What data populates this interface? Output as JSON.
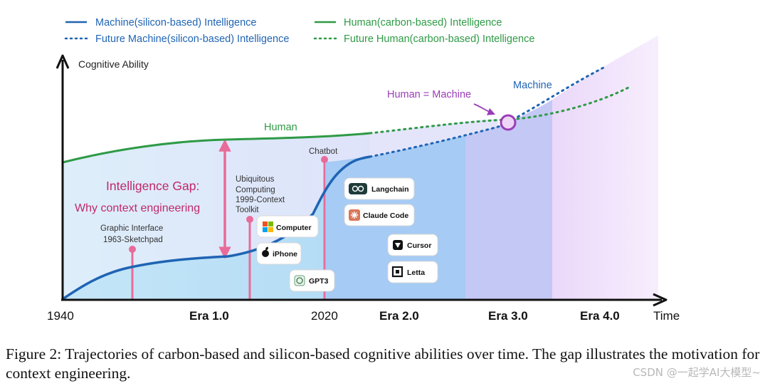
{
  "legend": {
    "machine": "Machine(silicon-based) Intelligence",
    "future_machine": "Future Machine(silicon-based) Intelligence",
    "human": "Human(carbon-based) Intelligence",
    "future_human": "Future Human(carbon-based) Intelligence"
  },
  "axes": {
    "y_label": "Cognitive Ability",
    "x_label": "Time",
    "ticks": {
      "t1940": "1940",
      "era1": "Era 1.0",
      "t2020": "2020",
      "era2": "Era 2.0",
      "era3": "Era 3.0",
      "era4": "Era 4.0"
    }
  },
  "labels": {
    "human": "Human",
    "machine": "Machine",
    "equal": "Human = Machine",
    "gap_title": "Intelligence Gap:",
    "gap_sub": "Why context engineering",
    "graphic1": "Graphic Interface",
    "graphic2": "1963-Sketchpad",
    "ubi1": "Ubiquitous",
    "ubi2": "Computing",
    "ubi3": "1999-Context",
    "ubi4": "Toolkit",
    "chatbot": "Chatbot"
  },
  "badges": {
    "computer": "Computer",
    "iphone": "iPhone",
    "gpt3": "GPT3",
    "langchain": "Langchain",
    "claude": "Claude Code",
    "cursor": "Cursor",
    "letta": "Letta"
  },
  "colors": {
    "machine": "#1f64b4",
    "human": "#2e9a46",
    "equal": "#9a3db8",
    "gap": "#c0286a",
    "marker": "#e96b9a"
  },
  "caption": "Figure 2: Trajectories of carbon-based and silicon-based cognitive abilities over time. The gap illustrates the motivation for context engineering.",
  "watermark": "CSDN @一起学AI大模型~"
}
